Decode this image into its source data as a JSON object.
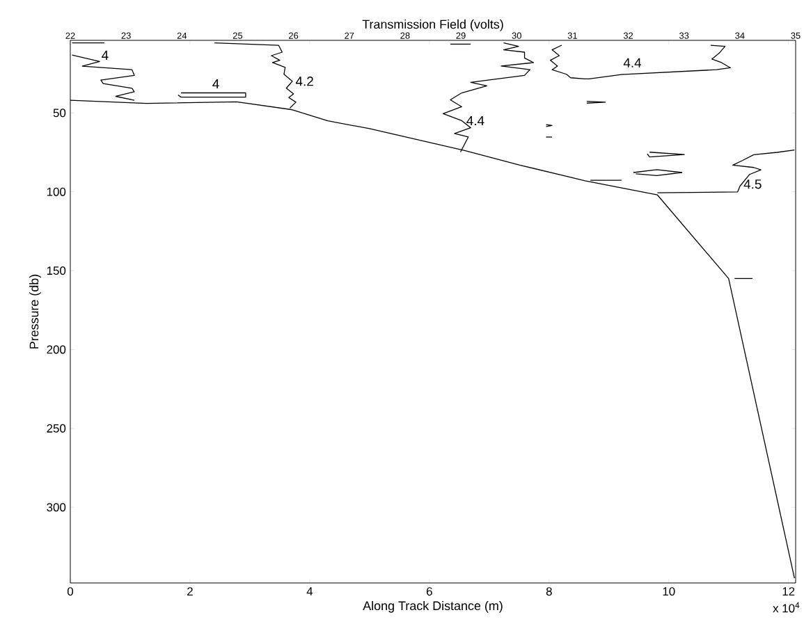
{
  "chart_data": {
    "type": "line",
    "x2label": "Transmission Field (volts)",
    "xlabel": "Along Track Distance (m)",
    "ylabel": "Pressure (db)",
    "xlim": [
      0,
      12.12
    ],
    "ylim": [
      348,
      4
    ],
    "xticks": [
      0,
      2,
      4,
      6,
      8,
      10,
      12
    ],
    "yticks": [
      50,
      100,
      150,
      200,
      250,
      300
    ],
    "x2lim": [
      22,
      35
    ],
    "x2ticks": [
      22,
      23,
      24,
      25,
      26,
      27,
      28,
      29,
      30,
      31,
      32,
      33,
      34,
      35
    ],
    "marker": "none",
    "line_style": "solid",
    "series": [
      {
        "color": "#000000",
        "x": [
          0,
          1.27,
          2.78,
          3.71,
          4.3,
          5.0,
          5.8,
          6.6,
          7.5,
          8.6,
          9.81,
          11.0,
          12.1
        ],
        "values": [
          42,
          44,
          43,
          48,
          55,
          60,
          67,
          74,
          83,
          93,
          102,
          155,
          345
        ]
      },
      {
        "color": "#000000",
        "x": [
          0.03,
          0.49,
          0.2,
          1.03,
          1.07,
          0.51,
          0.55,
          1.03,
          1.07,
          0.76,
          1.07
        ],
        "values": [
          13.3,
          17.4,
          20.4,
          22.6,
          26.2,
          29.2,
          31.4,
          34.4,
          36.6,
          39.5,
          42.0
        ]
      },
      {
        "color": "#000000",
        "x": [
          0.03,
          0.57
        ],
        "values": [
          5.6,
          5.6
        ]
      },
      {
        "color": "#000000",
        "x": [
          1.85,
          2.93,
          2.93,
          1.85,
          1.8
        ],
        "values": [
          37.3,
          37.3,
          40.0,
          40.0,
          38.6
        ]
      },
      {
        "color": "#000000",
        "x": [
          2.41,
          3.48,
          3.54,
          3.36,
          3.5,
          3.38,
          3.59,
          3.57,
          3.71,
          3.61,
          3.73,
          3.65,
          3.77,
          3.67
        ],
        "values": [
          5.6,
          7.1,
          11.5,
          13.7,
          16.6,
          18.1,
          21.1,
          25.5,
          29.9,
          34.3,
          38.0,
          40.3,
          43.2,
          46.9
        ]
      },
      {
        "color": "#000000",
        "x": [
          7.24,
          7.49,
          7.24,
          7.59,
          7.59,
          7.74,
          7.2,
          7.68,
          7.59,
          6.69,
          6.96,
          6.54,
          6.35,
          6.54,
          6.23,
          6.54,
          6.69,
          6.42,
          6.65,
          6.52
        ],
        "values": [
          5.6,
          7.8,
          10.0,
          11.5,
          15.2,
          18.1,
          20.3,
          22.6,
          26.2,
          30.6,
          32.8,
          37.3,
          41.7,
          46.1,
          50.5,
          54.9,
          59.4,
          63.0,
          65.3,
          74.8
        ]
      },
      {
        "color": "#000000",
        "x": [
          6.35,
          6.69
        ],
        "values": [
          6.4,
          6.4
        ]
      },
      {
        "color": "#000000",
        "x": [
          8.21,
          8.05,
          8.17,
          8.02,
          8.14,
          8.05,
          8.29,
          8.36,
          8.59,
          8.67,
          9.21,
          10.8,
          11.03,
          10.88,
          10.72,
          10.84,
          10.94,
          10.7
        ],
        "values": [
          7.1,
          10.0,
          13.7,
          16.6,
          20.3,
          22.6,
          25.5,
          27.7,
          28.4,
          28.4,
          25.7,
          22.6,
          21.4,
          18.1,
          15.9,
          12.2,
          7.8,
          7.1
        ]
      },
      {
        "color": "#000000",
        "x": [
          8.63,
          8.94,
          8.63
        ],
        "values": [
          42.6,
          43.2,
          43.8
        ]
      },
      {
        "color": "#000000",
        "x": [
          7.95,
          8.05,
          7.95
        ],
        "values": [
          57.4,
          58.0,
          58.6
        ]
      },
      {
        "color": "#000000",
        "x": [
          7.95,
          8.05
        ],
        "values": [
          65.3,
          65.3
        ]
      },
      {
        "color": "#000000",
        "x": [
          9.68,
          10.26,
          9.68,
          9.64
        ],
        "values": [
          74.9,
          76.4,
          77.9,
          76.0
        ]
      },
      {
        "color": "#000000",
        "x": [
          9.41,
          9.8,
          10.22,
          9.8,
          9.45
        ],
        "values": [
          87.8,
          86.0,
          87.8,
          89.7,
          88.6
        ]
      },
      {
        "color": "#000000",
        "x": [
          12.1,
          11.81,
          11.42,
          11.23,
          11.07,
          11.42,
          11.54,
          11.35,
          11.19,
          11.15,
          9.81
        ],
        "values": [
          73.5,
          75.0,
          76.5,
          80.2,
          83.1,
          84.6,
          86.1,
          89.0,
          96.4,
          100.1,
          100.6
        ]
      },
      {
        "color": "#000000",
        "x": [
          8.69,
          9.21
        ],
        "values": [
          92.7,
          92.7
        ]
      },
      {
        "color": "#000000",
        "x": [
          11.1,
          11.4
        ],
        "values": [
          155,
          155
        ]
      }
    ],
    "annotations": [
      "4",
      "4",
      "4.2",
      "4.4",
      "4.4",
      "4.5",
      "x 10$^{4}$"
    ]
  }
}
